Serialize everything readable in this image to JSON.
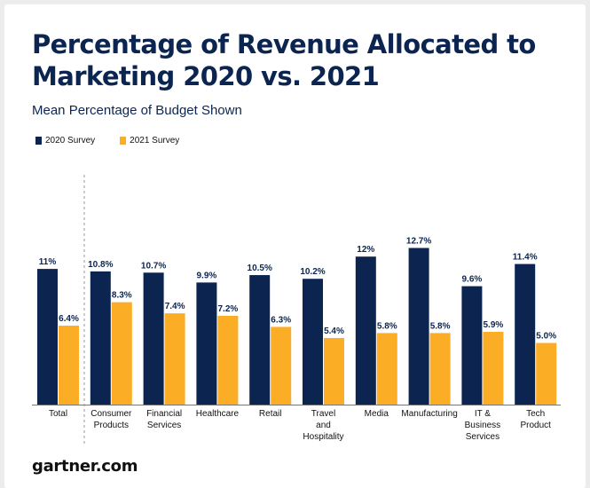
{
  "colors": {
    "series_2020": "#0b2550",
    "series_2021": "#fbad26",
    "text": "#111111",
    "title": "#0b2550"
  },
  "footer": {
    "source": "gartner.com"
  },
  "chart_data": {
    "type": "bar",
    "title": "Percentage of Revenue Allocated to Marketing 2020 vs. 2021",
    "subtitle": "Mean Percentage of Budget Shown",
    "xlabel": "",
    "ylabel": "",
    "ylim": [
      0,
      13
    ],
    "grid": false,
    "legend_position": "top-left",
    "categories": [
      [
        "Total"
      ],
      [
        "Consumer",
        "Products"
      ],
      [
        "Financial",
        "Services"
      ],
      [
        "Healthcare"
      ],
      [
        "Retail"
      ],
      [
        "Travel",
        "and",
        "Hospitality"
      ],
      [
        "Media"
      ],
      [
        "Manufacturing"
      ],
      [
        "IT &",
        "Business",
        "Services"
      ],
      [
        "Tech",
        "Product"
      ]
    ],
    "series": [
      {
        "name": "2020 Survey",
        "values": [
          11,
          10.8,
          10.7,
          9.9,
          10.5,
          10.2,
          12,
          12.7,
          9.6,
          11.4
        ],
        "labels": [
          "11%",
          "10.8%",
          "10.7%",
          "9.9%",
          "10.5%",
          "10.2%",
          "12%",
          "12.7%",
          "9.6%",
          "11.4%"
        ]
      },
      {
        "name": "2021 Survey",
        "values": [
          6.4,
          8.3,
          7.4,
          7.2,
          6.3,
          5.4,
          5.8,
          5.8,
          5.9,
          5.0
        ],
        "labels": [
          "6.4%",
          "8.3%",
          "7.4%",
          "7.2%",
          "6.3%",
          "5.4%",
          "5.8%",
          "5.8%",
          "5.9%",
          "5.0%"
        ]
      }
    ],
    "annotations": [
      "dashed separator between Total and industry categories"
    ]
  }
}
